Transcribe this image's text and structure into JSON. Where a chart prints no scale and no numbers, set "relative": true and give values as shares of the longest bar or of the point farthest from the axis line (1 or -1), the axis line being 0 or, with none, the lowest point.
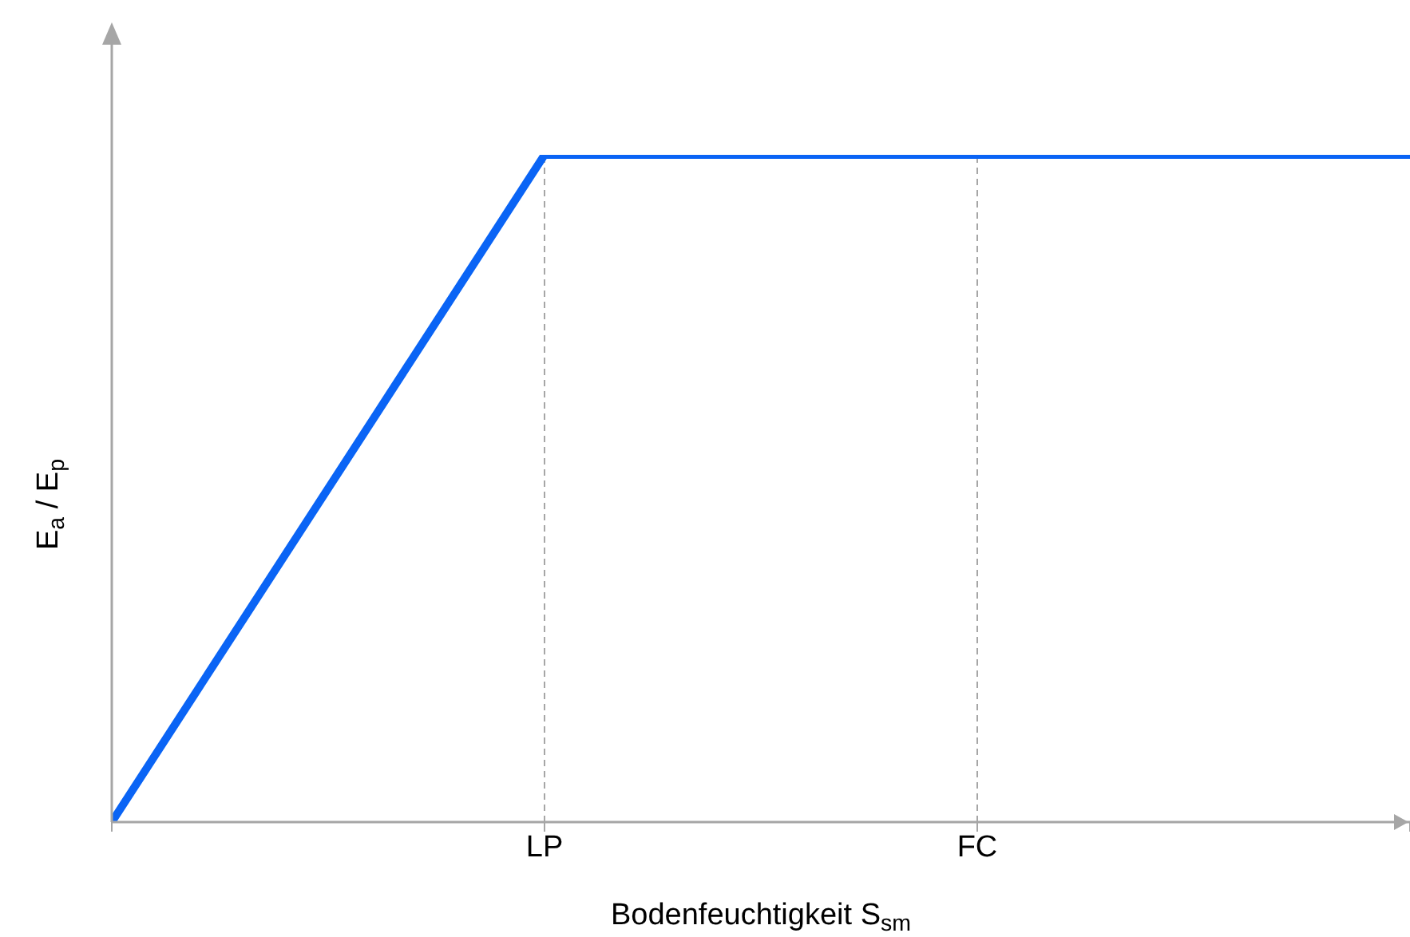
{
  "chart_data": {
    "type": "line",
    "relative": true,
    "xlabel": "Bodenfeuchtigkeit S$_{sm}$",
    "ylabel": "E$_{a}$ / E$_{p}$",
    "categories": [
      null,
      "LP",
      "FC",
      null
    ],
    "series": [
      {
        "color": "#0a64f5",
        "values": [
          0,
          1,
          1,
          1
        ]
      }
    ],
    "ref_lines": [
      {
        "axis": "x",
        "value": "LP",
        "color": "#a6a6a6",
        "line_style": "dashed"
      },
      {
        "axis": "x",
        "value": "FC",
        "color": "#a6a6a6",
        "line_style": "dashed"
      }
    ],
    "marker": "none",
    "line_style": "solid",
    "grid": false,
    "legend": false
  }
}
